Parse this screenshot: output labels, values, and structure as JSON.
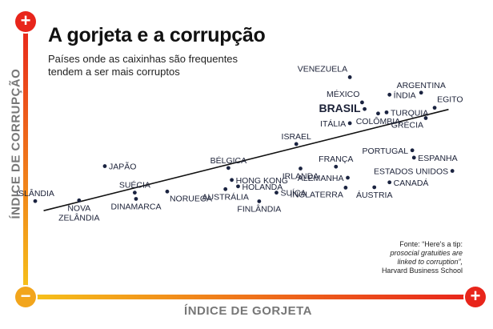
{
  "header": {
    "title": "A gorjeta e a corrupção",
    "subtitle_lines": [
      "Países onde as caixinhas são frequentes",
      "tendem a ser mais corruptos"
    ]
  },
  "axes": {
    "y_label": "ÍNDICE DE CORRUPÇÃO",
    "x_label": "ÍNDICE DE GORJETA",
    "plus": "+",
    "minus": "−"
  },
  "source_lines": [
    "Fonte: “Here's a tip:",
    "prosocial gratuities are",
    "linked to corruption”,",
    "Harvard Business School"
  ],
  "colors": {
    "plus_badge": "#e8251b",
    "minus_badge": "#f2a51c",
    "axis_top": "#e8251b",
    "axis_bottom": "#f6c21a",
    "dot": "#1a2340",
    "trend": "#111111"
  },
  "chart_data": {
    "type": "scatter",
    "title": "A gorjeta e a corrupção",
    "xlabel": "ÍNDICE DE GORJETA",
    "ylabel": "ÍNDICE DE CORRUPÇÃO",
    "xlim": [
      0,
      100
    ],
    "ylim": [
      0,
      100
    ],
    "trend_line": [
      [
        2,
        16
      ],
      [
        98,
        71
      ]
    ],
    "points": [
      {
        "name": "VENEZUELA",
        "x": 74.6,
        "y": 88.5,
        "label_pos": "top-left"
      },
      {
        "name": "ARGENTINA",
        "x": 91.5,
        "y": 80.1,
        "label_pos": "top"
      },
      {
        "name": "MÉXICO",
        "x": 77.5,
        "y": 74.8,
        "label_pos": "top-left"
      },
      {
        "name": "ÍNDIA",
        "x": 84.0,
        "y": 79.0,
        "label_pos": "right"
      },
      {
        "name": "EGITO",
        "x": 94.7,
        "y": 71.9,
        "label_pos": "top-right"
      },
      {
        "name": "BRASIL",
        "x": 78.1,
        "y": 71.2,
        "label_pos": "left",
        "highlight": true
      },
      {
        "name": "TURQUIA",
        "x": 83.3,
        "y": 69.4,
        "label_pos": "right"
      },
      {
        "name": "COLÔMBIA",
        "x": 81.3,
        "y": 68.8,
        "label_pos": "bottom"
      },
      {
        "name": "GRÉCIA",
        "x": 92.6,
        "y": 66.3,
        "label_pos": "bottom-left"
      },
      {
        "name": "ITÁLIA",
        "x": 74.6,
        "y": 63.5,
        "label_pos": "left"
      },
      {
        "name": "ISRAEL",
        "x": 61.9,
        "y": 52.2,
        "label_pos": "top"
      },
      {
        "name": "PORTUGAL",
        "x": 89.4,
        "y": 48.8,
        "label_pos": "left"
      },
      {
        "name": "ESPANHA",
        "x": 89.8,
        "y": 44.8,
        "label_pos": "right"
      },
      {
        "name": "JAPÃO",
        "x": 16.5,
        "y": 40.2,
        "label_pos": "right"
      },
      {
        "name": "BÉLGICA",
        "x": 45.8,
        "y": 39.2,
        "label_pos": "top"
      },
      {
        "name": "FRANÇA",
        "x": 71.3,
        "y": 39.9,
        "label_pos": "top"
      },
      {
        "name": "IRLANDA",
        "x": 62.9,
        "y": 38.9,
        "label_pos": "bottom"
      },
      {
        "name": "ESTADOS UNIDOS",
        "x": 98.9,
        "y": 37.6,
        "label_pos": "left"
      },
      {
        "name": "HONG KONG",
        "x": 46.6,
        "y": 32.7,
        "label_pos": "right"
      },
      {
        "name": "ALEMANHA",
        "x": 74.1,
        "y": 33.9,
        "label_pos": "left"
      },
      {
        "name": "CANADÁ",
        "x": 84.0,
        "y": 31.4,
        "label_pos": "right"
      },
      {
        "name": "HOLANDA",
        "x": 48.1,
        "y": 29.2,
        "label_pos": "right"
      },
      {
        "name": "AUSTRÁLIA",
        "x": 45.1,
        "y": 27.7,
        "label_pos": "bottom"
      },
      {
        "name": "ÁUSTRIA",
        "x": 80.4,
        "y": 28.7,
        "label_pos": "bottom"
      },
      {
        "name": "INGLATERRA",
        "x": 73.6,
        "y": 28.5,
        "label_pos": "bottom-left"
      },
      {
        "name": "SUÉCIA",
        "x": 23.6,
        "y": 25.8,
        "label_pos": "top"
      },
      {
        "name": "NORUEGA",
        "x": 31.3,
        "y": 26.4,
        "label_pos": "bottom-right"
      },
      {
        "name": "SUÍÇA",
        "x": 57.2,
        "y": 25.8,
        "label_pos": "right"
      },
      {
        "name": "ISLÂNDIA",
        "x": 0.0,
        "y": 21.2,
        "label_pos": "top"
      },
      {
        "name": "DINAMARCA",
        "x": 23.9,
        "y": 22.4,
        "label_pos": "bottom"
      },
      {
        "name": "NOVA ZELÂNDIA",
        "x": 10.4,
        "y": 21.6,
        "label_pos": "bottom"
      },
      {
        "name": "FINLÂNDIA",
        "x": 53.1,
        "y": 21.1,
        "label_pos": "bottom"
      }
    ]
  }
}
